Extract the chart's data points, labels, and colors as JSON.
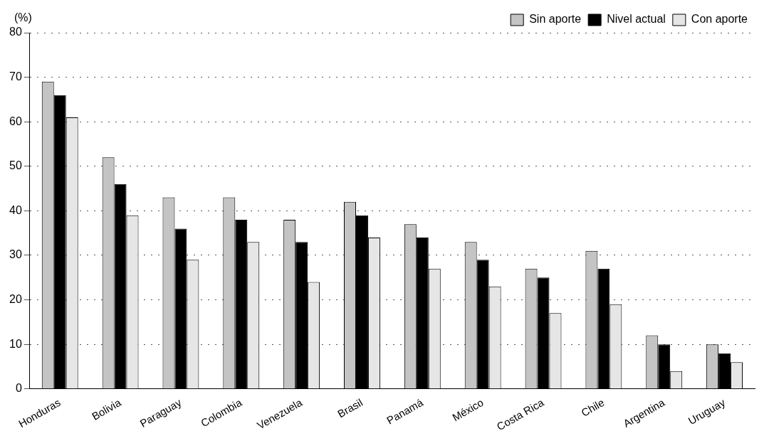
{
  "chart_data": {
    "type": "bar",
    "ylabel": "(%)",
    "categories": [
      "Honduras",
      "Bolivia",
      "Paraguay",
      "Colombia",
      "Venezuela",
      "Brasil",
      "Panamá",
      "México",
      "Costa Rica",
      "Chile",
      "Argentina",
      "Uruguay"
    ],
    "series": [
      {
        "name": "Sin aporte",
        "color": "#c4c4c4",
        "values": [
          69,
          52,
          43,
          43,
          38,
          42,
          37,
          33,
          27,
          31,
          12,
          10
        ]
      },
      {
        "name": "Nivel actual",
        "color": "#000000",
        "values": [
          66,
          46,
          36,
          38,
          33,
          39,
          34,
          29,
          25,
          27,
          10,
          8
        ]
      },
      {
        "name": "Con aporte",
        "color": "#e6e6e6",
        "values": [
          61,
          39,
          29,
          33,
          24,
          34,
          27,
          23,
          17,
          19,
          4,
          6
        ]
      }
    ],
    "ylim": [
      0,
      80
    ],
    "yticks": [
      0,
      10,
      20,
      30,
      40,
      50,
      60,
      70,
      80
    ],
    "grid": "y",
    "legend": "top right"
  }
}
